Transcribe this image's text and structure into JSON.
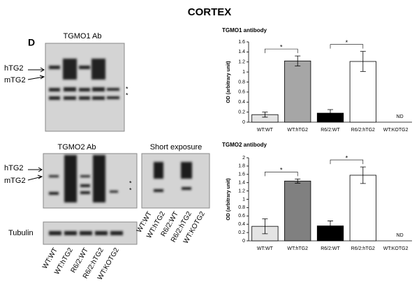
{
  "title": "CORTEX",
  "panel": "D",
  "blots": {
    "tgmo1_title": "TGMO1 Ab",
    "tgmo2_title": "TGMO2 Ab",
    "short_title": "Short exposure",
    "htg2": "hTG2",
    "mtg2": "mTG2",
    "star": "*",
    "tubulin": "Tubulin",
    "lanes": [
      "WT:WT",
      "WT:hTG2",
      "R6/2:WT",
      "R6/2:hTG2",
      "WT:KOTG2"
    ],
    "short_lanes": [
      "WT:WT",
      "WT:hTG2",
      "R6/2:WT",
      "R6/2:hTG2",
      "WT:KOTG2"
    ]
  },
  "chart_data": [
    {
      "type": "bar",
      "title": "TGMO1 antibody",
      "y_label": "OD (arbitrary unit)",
      "categories": [
        "WT:WT",
        "WT:hTG2",
        "R6/2:WT",
        "R6/2:hTG2",
        "WT:KOTG2"
      ],
      "values": [
        0.15,
        1.22,
        0.18,
        1.21,
        null
      ],
      "errors": [
        0.05,
        0.1,
        0.07,
        0.2,
        null
      ],
      "value_labels": [
        null,
        null,
        null,
        null,
        "ND"
      ],
      "colors": [
        "#e4e4e4",
        "#a6a6a6",
        "#000000",
        "#ffffff",
        "#ffffff"
      ],
      "significance": [
        {
          "from": 0,
          "to": 1,
          "label": "*"
        },
        {
          "from": 2,
          "to": 3,
          "label": "*"
        }
      ],
      "ylim": [
        0,
        1.6
      ],
      "yticks": [
        0,
        0.2,
        0.4,
        0.6,
        0.8,
        1,
        1.2,
        1.4,
        1.6
      ]
    },
    {
      "type": "bar",
      "title": "TGMO2 antibody",
      "y_label": "OD (arbitrary unit)",
      "categories": [
        "WT:WT",
        "WT:hTG2",
        "R6/2:WT",
        "R6/2:hTG2",
        "WT:KOTG2"
      ],
      "values": [
        0.35,
        1.44,
        0.36,
        1.58,
        null
      ],
      "errors": [
        0.18,
        0.05,
        0.12,
        0.2,
        null
      ],
      "value_labels": [
        null,
        null,
        null,
        null,
        "ND"
      ],
      "colors": [
        "#e4e4e4",
        "#808080",
        "#000000",
        "#ffffff",
        "#ffffff"
      ],
      "significance": [
        {
          "from": 0,
          "to": 1,
          "label": "*"
        },
        {
          "from": 2,
          "to": 3,
          "label": "*"
        }
      ],
      "ylim": [
        0,
        2
      ],
      "yticks": [
        0,
        0.2,
        0.4,
        0.6,
        0.8,
        1,
        1.2,
        1.4,
        1.6,
        1.8,
        2
      ]
    }
  ]
}
